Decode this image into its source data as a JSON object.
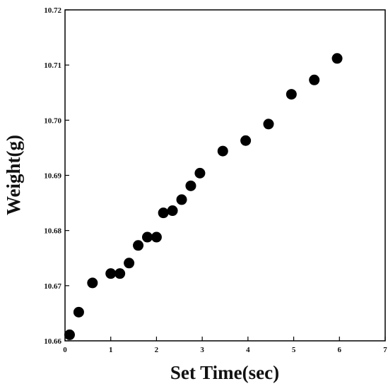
{
  "chart_data": {
    "type": "scatter",
    "title": "",
    "xlabel": "Set Time(sec)",
    "ylabel": "Weight(g)",
    "xlim": [
      0,
      7
    ],
    "ylim": [
      10.66,
      10.72
    ],
    "x_ticks": [
      "0",
      "1",
      "2",
      "3",
      "4",
      "5",
      "6",
      "7"
    ],
    "y_ticks": [
      "10.66",
      "10.67",
      "10.68",
      "10.69",
      "10.70",
      "10.71",
      "10.72"
    ],
    "grid": false,
    "legend": "none",
    "marker_color": "#000000",
    "series": [
      {
        "x": [
          0.1,
          0.3,
          0.6,
          1.0,
          1.2,
          1.4,
          1.6,
          1.8,
          2.0,
          2.15,
          2.35,
          2.55,
          2.75,
          2.95,
          3.45,
          3.95,
          4.45,
          4.95,
          5.45,
          5.95
        ],
        "y": [
          10.6611,
          10.6652,
          10.6705,
          10.6722,
          10.6722,
          10.6741,
          10.6773,
          10.6788,
          10.6788,
          10.6832,
          10.6836,
          10.6856,
          10.6881,
          10.6904,
          10.6944,
          10.6963,
          10.6993,
          10.7047,
          10.7073,
          10.7112
        ]
      }
    ]
  }
}
